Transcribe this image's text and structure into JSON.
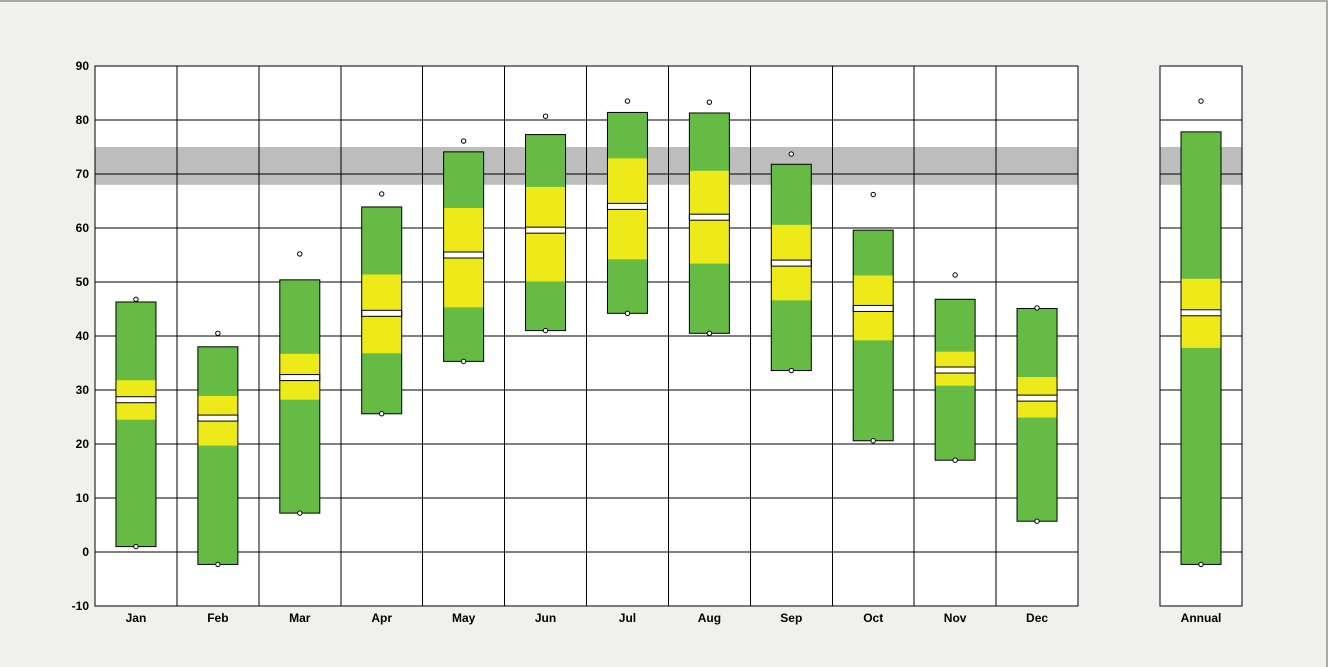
{
  "chart_data": [
    {
      "type": "box",
      "title": "",
      "xlabel": "",
      "ylabel": "",
      "ylim": [
        -10,
        90
      ],
      "yticks": [
        -10,
        0,
        10,
        20,
        30,
        40,
        50,
        60,
        70,
        80,
        90
      ],
      "grid": true,
      "legend": "none",
      "reference_band": {
        "low": 68,
        "high": 75,
        "color": "#bdbdbd"
      },
      "colors": {
        "outer": "#66bb44",
        "inner": "#eeea1a",
        "median": "#ffffff",
        "edge": "#000000"
      },
      "categories": [
        "Jan",
        "Feb",
        "Mar",
        "Apr",
        "May",
        "Jun",
        "Jul",
        "Aug",
        "Sep",
        "Oct",
        "Nov",
        "Dec"
      ],
      "boxes": [
        {
          "min": 1,
          "low": 1,
          "q1": 24.5,
          "median": 28.2,
          "q3": 31.8,
          "high": 46.3,
          "max": 46.8
        },
        {
          "min": -2.3,
          "low": -2.3,
          "q1": 19.7,
          "median": 24.8,
          "q3": 28.9,
          "high": 38,
          "max": 40.5
        },
        {
          "min": 7.2,
          "low": 7.2,
          "q1": 28.2,
          "median": 32.3,
          "q3": 36.7,
          "high": 50.4,
          "max": 55.2
        },
        {
          "min": 25.6,
          "low": 25.6,
          "q1": 36.8,
          "median": 44.2,
          "q3": 51.4,
          "high": 63.9,
          "max": 66.3
        },
        {
          "min": 35.3,
          "low": 35.3,
          "q1": 45.3,
          "median": 55,
          "q3": 63.7,
          "high": 74.1,
          "max": 76.1
        },
        {
          "min": 41,
          "low": 41,
          "q1": 50.1,
          "median": 59.6,
          "q3": 67.6,
          "high": 77.3,
          "max": 80.7
        },
        {
          "min": 44.2,
          "low": 44.2,
          "q1": 54.2,
          "median": 64,
          "q3": 72.9,
          "high": 81.4,
          "max": 83.5
        },
        {
          "min": 40.5,
          "low": 40.5,
          "q1": 53.4,
          "median": 62,
          "q3": 70.6,
          "high": 81.3,
          "max": 83.3
        },
        {
          "min": 33.6,
          "low": 33.6,
          "q1": 46.6,
          "median": 53.5,
          "q3": 60.6,
          "high": 71.8,
          "max": 73.7
        },
        {
          "min": 20.6,
          "low": 20.6,
          "q1": 39.2,
          "median": 45.1,
          "q3": 51.2,
          "high": 59.6,
          "max": 66.2
        },
        {
          "min": 17,
          "low": 17,
          "q1": 30.8,
          "median": 33.7,
          "q3": 37.1,
          "high": 46.8,
          "max": 51.3
        },
        {
          "min": 5.7,
          "low": 5.7,
          "q1": 24.9,
          "median": 28.5,
          "q3": 32.4,
          "high": 45.1,
          "max": 45.2
        }
      ]
    },
    {
      "type": "box",
      "title": "",
      "ylim": [
        -10,
        90
      ],
      "grid": true,
      "reference_band": {
        "low": 68,
        "high": 75,
        "color": "#bdbdbd"
      },
      "colors": {
        "outer": "#66bb44",
        "inner": "#eeea1a",
        "median": "#ffffff",
        "edge": "#000000"
      },
      "categories": [
        "Annual"
      ],
      "boxes": [
        {
          "min": -2.3,
          "low": -2.3,
          "q1": 37.8,
          "median": 44.3,
          "q3": 50.6,
          "high": 77.8,
          "max": 83.5
        }
      ]
    }
  ]
}
